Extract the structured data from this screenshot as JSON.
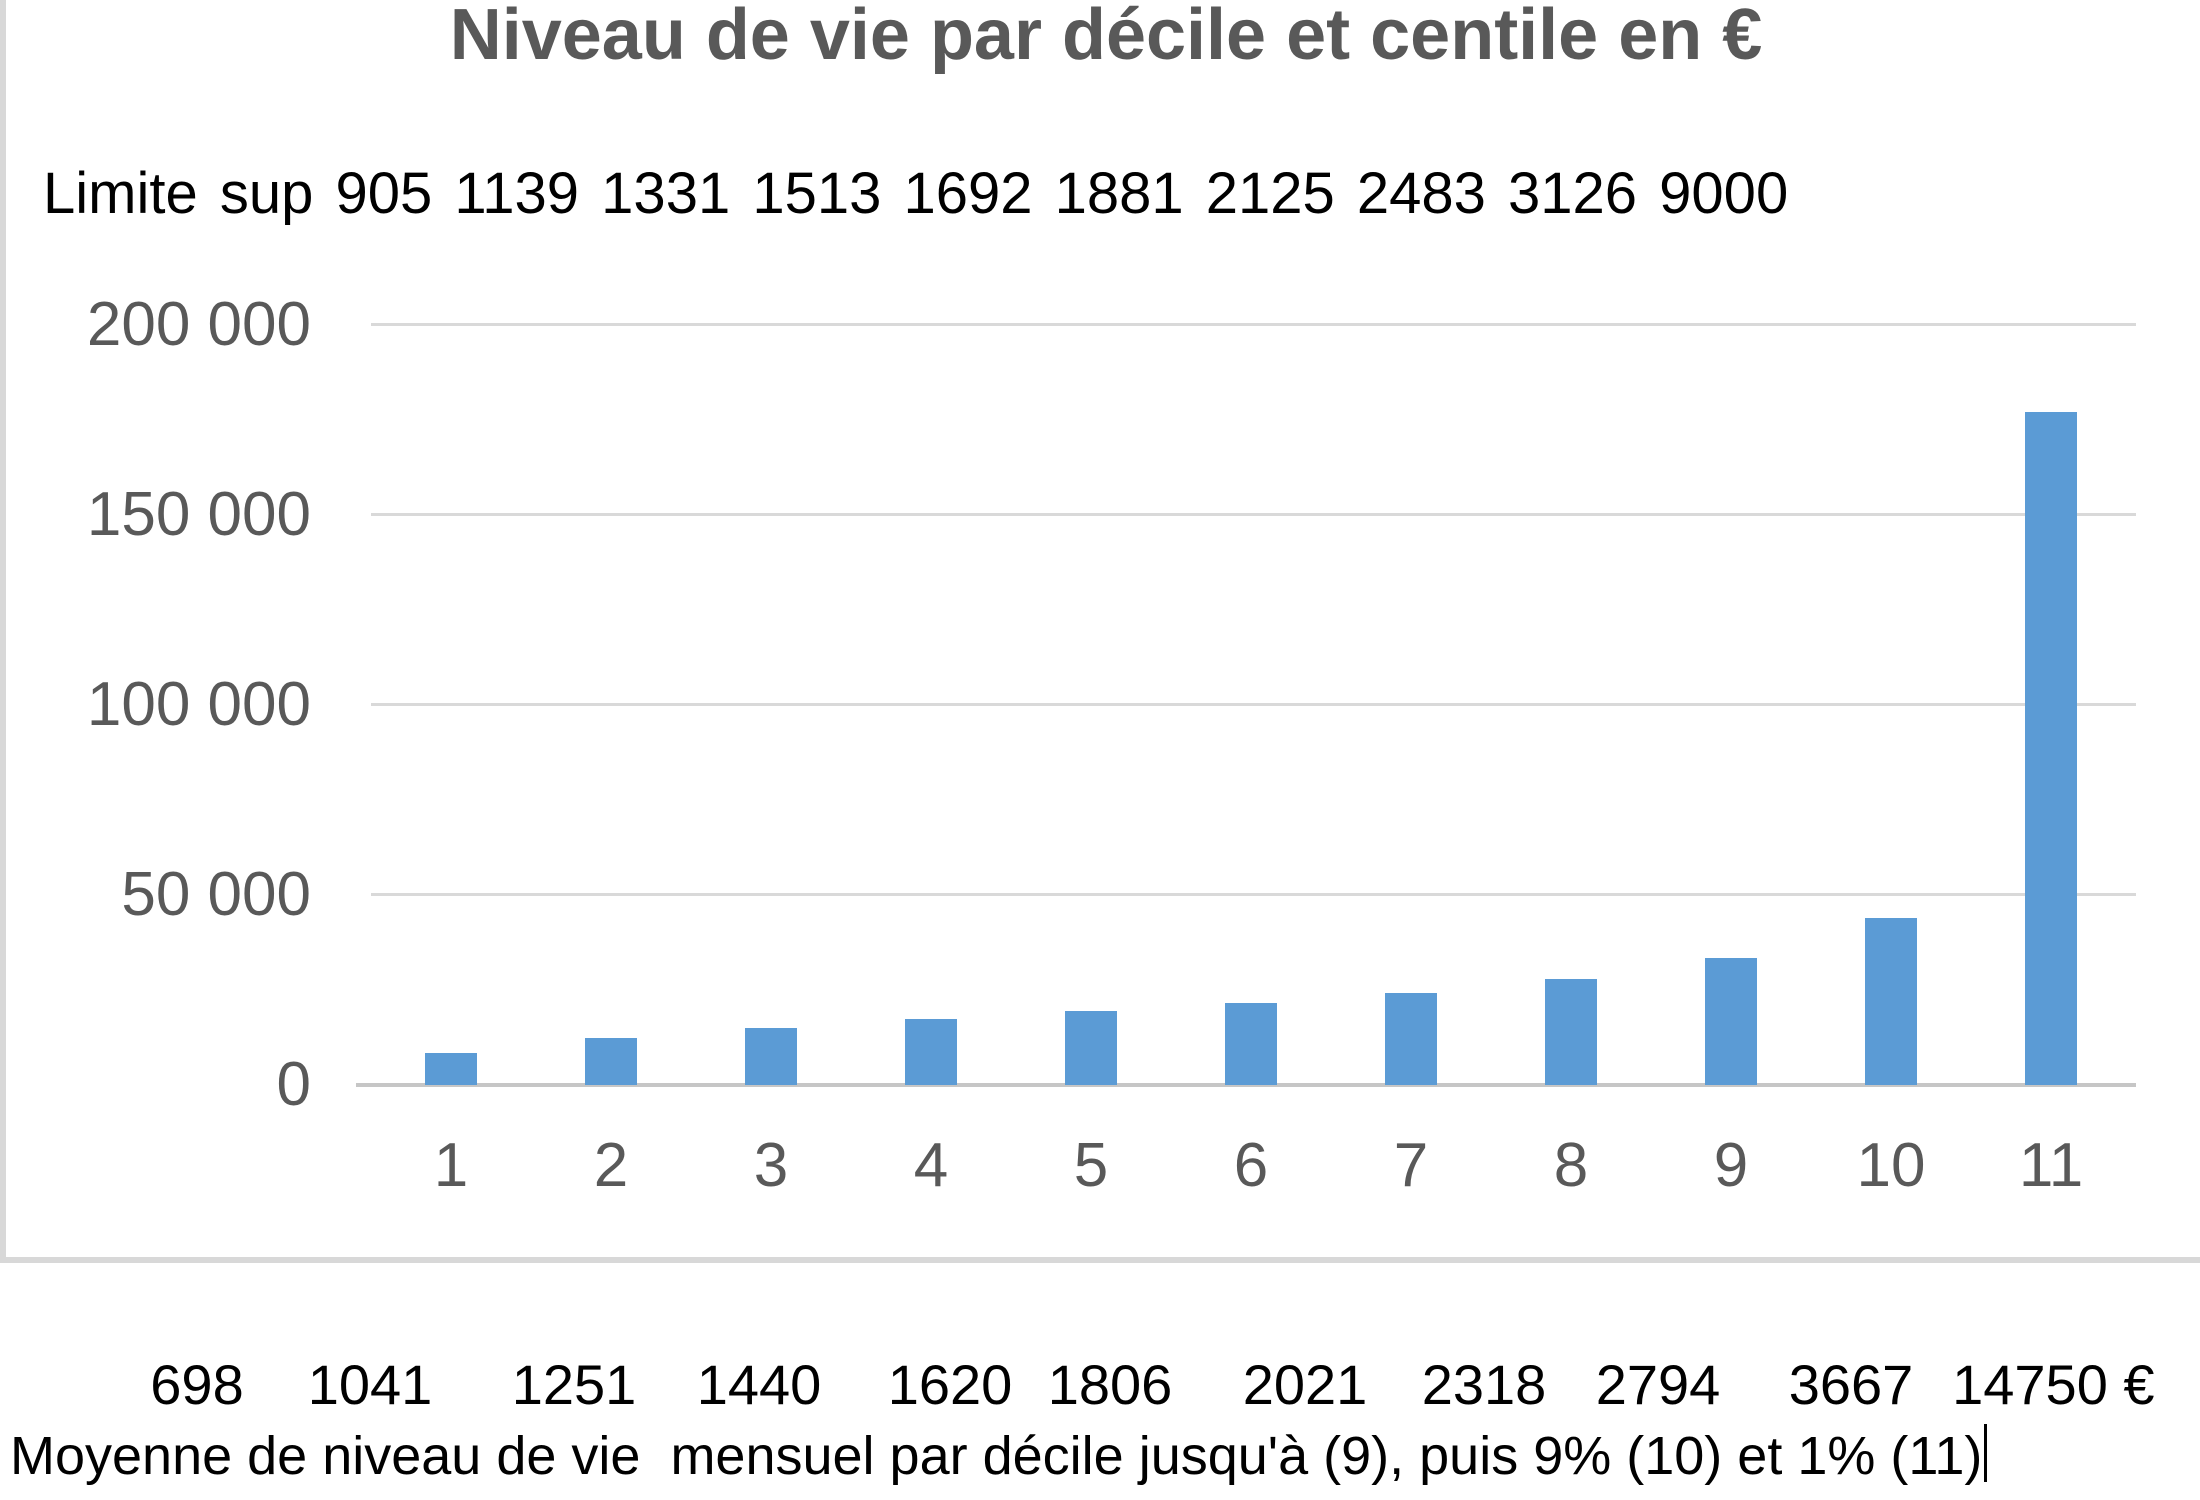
{
  "colors": {
    "bar": "#5B9BD5",
    "gridline": "#D9D9D9",
    "axis_line": "#C6C6C6",
    "axis_text": "#595959",
    "title_text": "#595959",
    "body_text": "#000000",
    "frame_border": "#D8D8D8"
  },
  "chart": {
    "title": "Niveau de vie par décile et centile en €",
    "limite_sup_text": "Limite sup 905 1139 1331 1513 1692 1881 2125 2483 3126 9000",
    "caption": "Moyenne de niveau de vie  mensuel par décile jusqu'à (9), puis 9% (10) et 1% (11)"
  },
  "chart_data": {
    "type": "bar",
    "title": "Niveau de vie par décile et centile en €",
    "categories": [
      "1",
      "2",
      "3",
      "4",
      "5",
      "6",
      "7",
      "8",
      "9",
      "10",
      "11"
    ],
    "values": [
      8376,
      12492,
      15012,
      17280,
      19440,
      21672,
      24252,
      27816,
      33528,
      44004,
      177000
    ],
    "note": "bar heights read off gridlines; equal to 12 x the monthly averages printed below the chart",
    "ylim": [
      0,
      200000
    ],
    "yticks": [
      0,
      50000,
      100000,
      150000,
      200000
    ],
    "ytick_labels": [
      "0",
      "50 000",
      "100 000",
      "150 000",
      "200 000"
    ],
    "xlabel": "",
    "ylabel": "",
    "grid": true,
    "legend": false,
    "bar_color": "#5B9BD5",
    "limite_sup": {
      "label": "Limite sup",
      "values": [
        905,
        1139,
        1331,
        1513,
        1692,
        1881,
        2125,
        2483,
        3126,
        9000
      ]
    },
    "monthly_averages_row": [
      "698",
      "1041",
      "1251",
      "1440",
      "1620",
      "1806",
      "2021",
      "2318",
      "2794",
      "3667",
      "14750",
      "€"
    ],
    "caption": "Moyenne de niveau de vie  mensuel par décile jusqu'à (9), puis 9% (10) et 1% (11)"
  }
}
